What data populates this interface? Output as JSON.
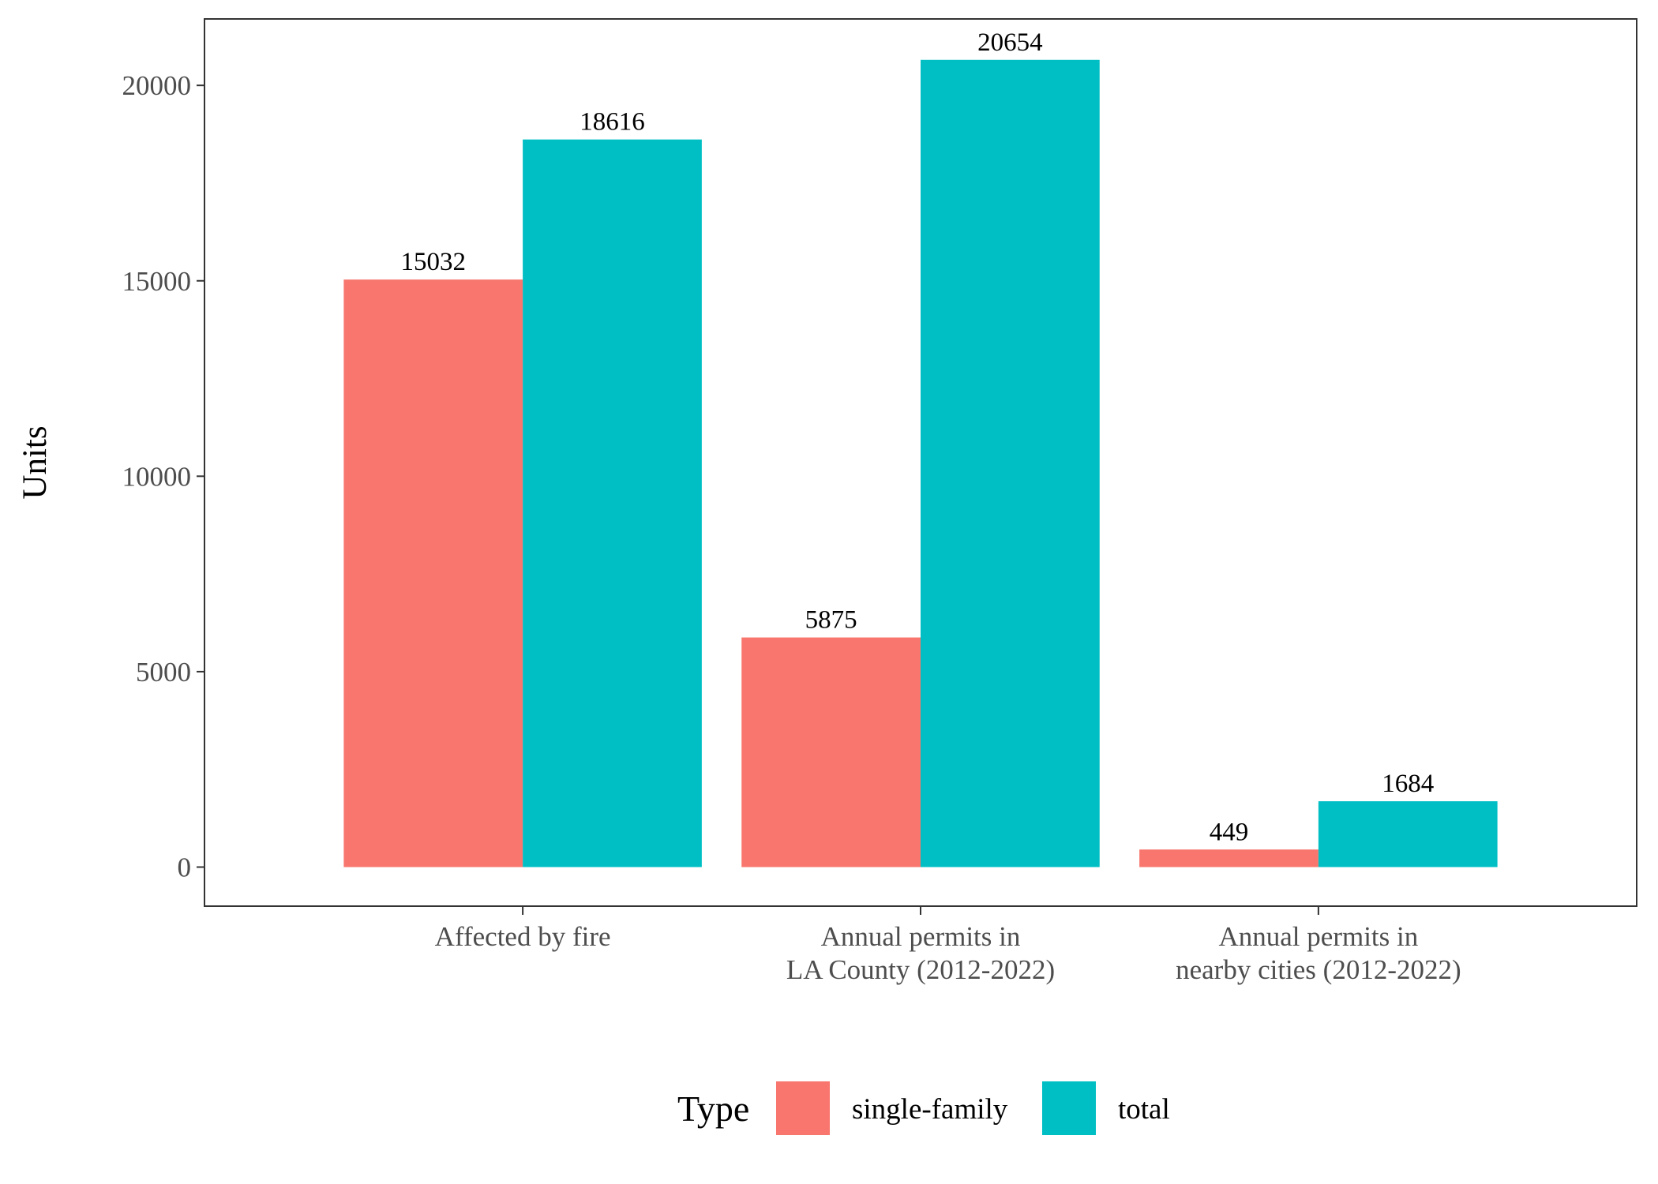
{
  "chart_data": {
    "type": "bar",
    "title": "",
    "xlabel": "",
    "ylabel": "Units",
    "ylim": [
      -1000,
      21700
    ],
    "yticks": [
      0,
      5000,
      10000,
      15000,
      20000
    ],
    "categories": [
      [
        "Affected by fire"
      ],
      [
        "Annual permits in",
        "LA County (2012-2022)"
      ],
      [
        "Annual permits in",
        "nearby cities (2012-2022)"
      ]
    ],
    "series": [
      {
        "name": "single-family",
        "color": "#F8766D",
        "values": [
          15032,
          5875,
          449
        ]
      },
      {
        "name": "total",
        "color": "#00BFC4",
        "values": [
          18616,
          20654,
          1684
        ]
      }
    ],
    "legend": {
      "title": "Type",
      "position": "bottom"
    },
    "grid": false,
    "panel_border": true
  }
}
